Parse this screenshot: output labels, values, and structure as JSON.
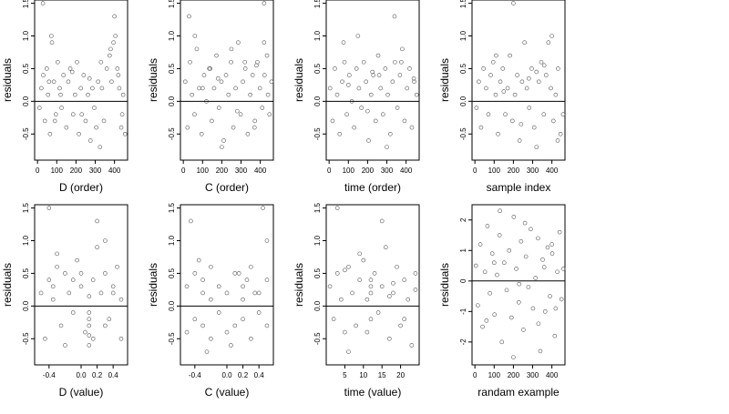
{
  "chart_data": [
    {
      "type": "scatter",
      "xlabel": "D (order)",
      "ylabel": "residuals",
      "ylim": [
        -0.9,
        1.55
      ],
      "xlim": [
        -15,
        468
      ],
      "xticks": [
        0,
        100,
        200,
        300,
        400
      ],
      "xtick_labels": [
        "0",
        "100",
        "200",
        "300",
        "400"
      ],
      "yticks": [
        -0.5,
        0,
        0.5,
        1,
        1.5
      ],
      "ytick_labels": [
        "-0.5",
        "0.0",
        "0.5",
        "1.0",
        "1.5"
      ],
      "hline": 0,
      "grid": false,
      "series": [
        {
          "x": [
            10,
            20,
            30,
            38,
            48,
            55,
            65,
            75,
            85,
            95,
            105,
            115,
            125,
            135,
            150,
            160,
            170,
            185,
            195,
            205,
            215,
            225,
            240,
            250,
            262,
            275,
            285,
            295,
            305,
            315,
            325,
            335,
            345,
            360,
            375,
            385,
            395,
            405,
            415,
            425,
            435,
            445,
            455,
            60,
            90,
            120,
            180,
            230,
            270,
            330,
            380,
            420,
            440,
            400,
            72,
            28
          ],
          "y": [
            -0.1,
            0.2,
            0.4,
            -0.3,
            0.5,
            0.1,
            -0.5,
            0.9,
            0.3,
            -0.2,
            0.6,
            0.2,
            -0.1,
            0.4,
            -0.4,
            0.3,
            0.5,
            -0.2,
            0.1,
            0.6,
            -0.5,
            0.2,
            0.4,
            -0.3,
            0.1,
            -0.6,
            0.2,
            -0.1,
            -0.4,
            0.3,
            -0.7,
            0.2,
            -0.3,
            0.5,
            0.7,
            0.3,
            0.9,
            1.0,
            0.5,
            0.2,
            -0.4,
            0.1,
            -0.5,
            0.3,
            -0.3,
            0.1,
            0.45,
            -0.2,
            0.35,
            0.6,
            0.8,
            0.4,
            -0.2,
            1.3,
            1.0,
            1.5
          ]
        }
      ]
    },
    {
      "type": "scatter",
      "xlabel": "C (order)",
      "ylabel": "residuals",
      "ylim": [
        -0.9,
        1.55
      ],
      "xlim": [
        -15,
        468
      ],
      "xticks": [
        0,
        100,
        200,
        300,
        400
      ],
      "xtick_labels": [
        "0",
        "100",
        "200",
        "300",
        "400"
      ],
      "yticks": [
        -0.5,
        0,
        0.5,
        1,
        1.5
      ],
      "ytick_labels": [
        "-0.5",
        "0.0",
        "0.5",
        "1.0",
        "1.5"
      ],
      "hline": 0,
      "grid": false,
      "series": [
        {
          "x": [
            10,
            22,
            35,
            45,
            58,
            70,
            82,
            95,
            108,
            120,
            135,
            148,
            160,
            172,
            185,
            198,
            210,
            222,
            235,
            248,
            260,
            272,
            285,
            298,
            310,
            322,
            335,
            348,
            360,
            372,
            385,
            398,
            410,
            422,
            435,
            448,
            458,
            60,
            140,
            200,
            250,
            320,
            370,
            420,
            100,
            180,
            280,
            380,
            440,
            30,
            420
          ],
          "y": [
            0.3,
            -0.4,
            0.6,
            0.1,
            -0.2,
            0.8,
            0.2,
            -0.5,
            0.4,
            0.0,
            0.5,
            -0.3,
            0.2,
            0.7,
            -0.1,
            0.3,
            -0.6,
            0.4,
            0.1,
            0.6,
            -0.4,
            0.2,
            0.9,
            -0.2,
            0.3,
            0.5,
            -0.5,
            0.1,
            0.4,
            -0.3,
            0.6,
            0.2,
            -0.1,
            0.4,
            0.7,
            -0.2,
            0.3,
            1.0,
            0.5,
            -0.7,
            0.8,
            0.6,
            -0.4,
            0.9,
            0.2,
            0.35,
            -0.15,
            0.55,
            0.1,
            1.3,
            1.5
          ]
        }
      ]
    },
    {
      "type": "scatter",
      "xlabel": "time (order)",
      "ylabel": "residuals",
      "ylim": [
        -0.9,
        1.55
      ],
      "xlim": [
        -15,
        468
      ],
      "xticks": [
        0,
        100,
        200,
        300,
        400
      ],
      "xtick_labels": [
        "0",
        "100",
        "200",
        "300",
        "400"
      ],
      "yticks": [
        -0.5,
        0,
        0.5,
        1,
        1.5
      ],
      "ytick_labels": [
        "-0.5",
        "0.0",
        "0.5",
        "1.0",
        "1.5"
      ],
      "hline": 0,
      "grid": false,
      "series": [
        {
          "x": [
            5,
            18,
            30,
            42,
            55,
            68,
            80,
            92,
            105,
            118,
            130,
            142,
            155,
            168,
            180,
            192,
            205,
            218,
            230,
            242,
            255,
            268,
            280,
            292,
            305,
            318,
            330,
            342,
            355,
            368,
            380,
            392,
            405,
            418,
            430,
            442,
            455,
            75,
            150,
            225,
            300,
            375,
            440,
            100,
            200,
            340,
            260
          ],
          "y": [
            0.2,
            -0.3,
            0.5,
            0.1,
            -0.5,
            0.3,
            0.6,
            -0.2,
            0.4,
            0.0,
            -0.4,
            0.5,
            0.2,
            -0.1,
            0.6,
            0.3,
            -0.6,
            0.1,
            0.4,
            -0.3,
            0.7,
            0.2,
            -0.2,
            0.5,
            0.1,
            -0.5,
            0.3,
            0.6,
            -0.1,
            0.4,
            0.8,
            -0.3,
            0.2,
            0.5,
            -0.4,
            0.3,
            0.1,
            0.9,
            1.0,
            0.45,
            -0.7,
            0.6,
            0.35,
            0.25,
            -0.15,
            1.3,
            0.4
          ]
        }
      ]
    },
    {
      "type": "scatter",
      "xlabel": "sample index",
      "ylabel": "residuals",
      "ylim": [
        -0.9,
        1.55
      ],
      "xlim": [
        -15,
        468
      ],
      "xticks": [
        0,
        100,
        200,
        300,
        400
      ],
      "xtick_labels": [
        "0",
        "100",
        "200",
        "300",
        "400"
      ],
      "yticks": [
        -0.5,
        0,
        0.5,
        1,
        1.5
      ],
      "ytick_labels": [
        "-0.5",
        "0.0",
        "0.5",
        "1.0",
        "1.5"
      ],
      "hline": 0,
      "grid": false,
      "series": [
        {
          "x": [
            8,
            20,
            32,
            45,
            58,
            70,
            82,
            95,
            108,
            120,
            132,
            145,
            158,
            170,
            182,
            195,
            208,
            220,
            232,
            245,
            258,
            270,
            282,
            295,
            308,
            320,
            332,
            345,
            358,
            370,
            382,
            395,
            408,
            420,
            432,
            445,
            458,
            110,
            200,
            280,
            360,
            400,
            150,
            240,
            320,
            430
          ],
          "y": [
            -0.1,
            0.3,
            -0.4,
            0.5,
            0.2,
            -0.2,
            0.4,
            0.6,
            0.1,
            -0.5,
            0.3,
            0.5,
            -0.2,
            0.2,
            0.7,
            -0.3,
            0.1,
            0.4,
            -0.6,
            0.3,
            0.9,
            0.2,
            -0.1,
            0.5,
            -0.4,
            -0.7,
            0.3,
            0.6,
            -0.2,
            0.4,
            0.9,
            0.2,
            -0.3,
            0.1,
            0.5,
            -0.5,
            -0.2,
            0.7,
            1.5,
            0.35,
            0.55,
            1.0,
            0.15,
            -0.35,
            0.45,
            -0.6
          ]
        }
      ]
    },
    {
      "type": "scatter",
      "xlabel": "D (value)",
      "ylabel": "residuals",
      "ylim": [
        -0.9,
        1.55
      ],
      "xlim": [
        -0.58,
        0.58
      ],
      "xticks": [
        -0.4,
        0,
        0.2,
        0.4
      ],
      "xtick_labels": [
        "-0.4",
        "0.0",
        "0.2",
        "0.4"
      ],
      "yticks": [
        -0.5,
        0,
        0.5,
        1,
        1.5
      ],
      "ytick_labels": [
        "-0.5",
        "0.0",
        "0.5",
        "1.0",
        "1.5"
      ],
      "hline": 0,
      "grid": false,
      "series": [
        {
          "x": [
            -0.5,
            -0.45,
            -0.4,
            -0.35,
            -0.3,
            -0.25,
            -0.2,
            -0.15,
            -0.1,
            -0.05,
            0.0,
            0.05,
            0.1,
            0.1,
            0.1,
            0.1,
            0.1,
            0.15,
            0.2,
            0.25,
            0.3,
            0.35,
            0.4,
            0.45,
            0.5,
            -0.4,
            -0.3,
            -0.2,
            -0.1,
            0.0,
            0.2,
            0.3,
            0.4,
            0.5,
            0.1,
            0.15,
            -0.35,
            0.3
          ],
          "y": [
            0.2,
            -0.5,
            0.4,
            0.1,
            0.6,
            -0.3,
            0.5,
            0.2,
            -0.1,
            0.7,
            0.3,
            -0.4,
            -0.2,
            -0.3,
            -0.45,
            -0.1,
            0.15,
            0.4,
            0.9,
            0.2,
            0.5,
            -0.2,
            0.3,
            0.6,
            -0.5,
            1.5,
            0.8,
            -0.6,
            0.4,
            0.5,
            1.3,
            1.0,
            0.2,
            0.1,
            -0.6,
            -0.5,
            0.3,
            -0.3
          ]
        }
      ]
    },
    {
      "type": "scatter",
      "xlabel": "C (value)",
      "ylabel": "residuals",
      "ylim": [
        -0.9,
        1.55
      ],
      "xlim": [
        -0.58,
        0.58
      ],
      "xticks": [
        -0.4,
        0,
        0.2,
        0.4
      ],
      "xtick_labels": [
        "-0.4",
        "0.0",
        "0.2",
        "0.4"
      ],
      "yticks": [
        -0.5,
        0,
        0.5,
        1,
        1.5
      ],
      "ytick_labels": [
        "-0.5",
        "0.0",
        "0.5",
        "1.0",
        "1.5"
      ],
      "hline": 0,
      "grid": false,
      "series": [
        {
          "x": [
            -0.5,
            -0.5,
            -0.4,
            -0.4,
            -0.3,
            -0.3,
            -0.3,
            -0.2,
            -0.2,
            -0.2,
            -0.1,
            -0.1,
            0.0,
            0.0,
            0.1,
            0.1,
            0.2,
            0.2,
            0.2,
            0.3,
            0.3,
            0.4,
            0.4,
            0.5,
            0.5,
            0.5,
            -0.45,
            -0.35,
            0.05,
            0.25,
            0.45,
            -0.25,
            0.15,
            0.35
          ],
          "y": [
            0.3,
            -0.4,
            0.5,
            -0.2,
            0.2,
            -0.3,
            0.4,
            0.1,
            -0.5,
            0.6,
            0.3,
            -0.1,
            0.2,
            -0.4,
            0.5,
            -0.3,
            0.1,
            0.3,
            -0.2,
            0.6,
            -0.5,
            0.2,
            -0.1,
            0.4,
            1.0,
            -0.3,
            1.3,
            0.7,
            -0.6,
            0.4,
            1.5,
            -0.7,
            0.5,
            0.2
          ]
        }
      ]
    },
    {
      "type": "scatter",
      "xlabel": "time (value)",
      "ylabel": "residuals",
      "ylim": [
        -0.9,
        1.55
      ],
      "xlim": [
        0,
        25
      ],
      "xticks": [
        5,
        10,
        15,
        20
      ],
      "xtick_labels": [
        "5",
        "10",
        "15",
        "20"
      ],
      "yticks": [
        -0.5,
        0,
        0.5,
        1,
        1.5
      ],
      "ytick_labels": [
        "-0.5",
        "0.0",
        "0.5",
        "1.0",
        "1.5"
      ],
      "hline": 0,
      "grid": false,
      "series": [
        {
          "x": [
            1,
            2,
            3,
            4,
            5,
            6,
            7,
            8,
            9,
            10,
            11,
            12,
            12,
            12,
            12,
            13,
            14,
            15,
            16,
            17,
            18,
            19,
            20,
            21,
            22,
            23,
            24,
            3,
            6,
            9,
            15,
            18,
            21,
            24,
            5,
            11,
            17
          ],
          "y": [
            0.3,
            -0.2,
            0.5,
            0.1,
            -0.4,
            0.6,
            0.2,
            -0.3,
            0.4,
            0.7,
            0.1,
            0.2,
            0.3,
            0.4,
            -0.2,
            0.5,
            -0.1,
            0.3,
            0.9,
            -0.5,
            0.2,
            0.6,
            -0.3,
            0.4,
            0.1,
            -0.6,
            0.5,
            1.5,
            -0.7,
            0.8,
            1.3,
            0.35,
            -0.2,
            0.25,
            0.55,
            -0.4,
            0.15
          ]
        }
      ]
    },
    {
      "type": "scatter",
      "xlabel": "randam example",
      "ylabel": "residuals",
      "ylim": [
        -2.75,
        2.5
      ],
      "xlim": [
        -15,
        468
      ],
      "xticks": [
        0,
        100,
        200,
        300,
        400
      ],
      "xtick_labels": [
        "0",
        "100",
        "200",
        "300",
        "400"
      ],
      "yticks": [
        -2,
        -1,
        0,
        1,
        2
      ],
      "ytick_labels": [
        "-2",
        "-1",
        "0",
        "1",
        "2"
      ],
      "hline": 0,
      "grid": false,
      "series": [
        {
          "x": [
            5,
            15,
            28,
            40,
            52,
            65,
            78,
            90,
            102,
            115,
            128,
            140,
            152,
            165,
            178,
            190,
            202,
            215,
            228,
            240,
            252,
            265,
            278,
            290,
            302,
            315,
            328,
            340,
            352,
            365,
            378,
            390,
            402,
            415,
            428,
            440,
            450,
            460,
            60,
            130,
            200,
            260,
            330,
            400,
            100,
            230,
            360,
            420
          ],
          "y": [
            0.5,
            -0.8,
            1.2,
            -1.5,
            0.3,
            1.8,
            -0.4,
            0.9,
            -1.1,
            0.2,
            1.5,
            -2.0,
            0.6,
            -0.3,
            1.0,
            -1.2,
            2.1,
            0.4,
            -0.7,
            1.3,
            -1.6,
            0.8,
            -0.2,
            1.7,
            -0.9,
            0.1,
            1.4,
            -2.3,
            0.7,
            -1.0,
            1.1,
            -0.5,
            0.9,
            -1.8,
            0.3,
            1.6,
            -0.6,
            0.4,
            -1.3,
            2.3,
            -2.5,
            1.9,
            -1.4,
            1.2,
            0.6,
            -0.1,
            0.45,
            -0.9
          ]
        }
      ]
    }
  ]
}
